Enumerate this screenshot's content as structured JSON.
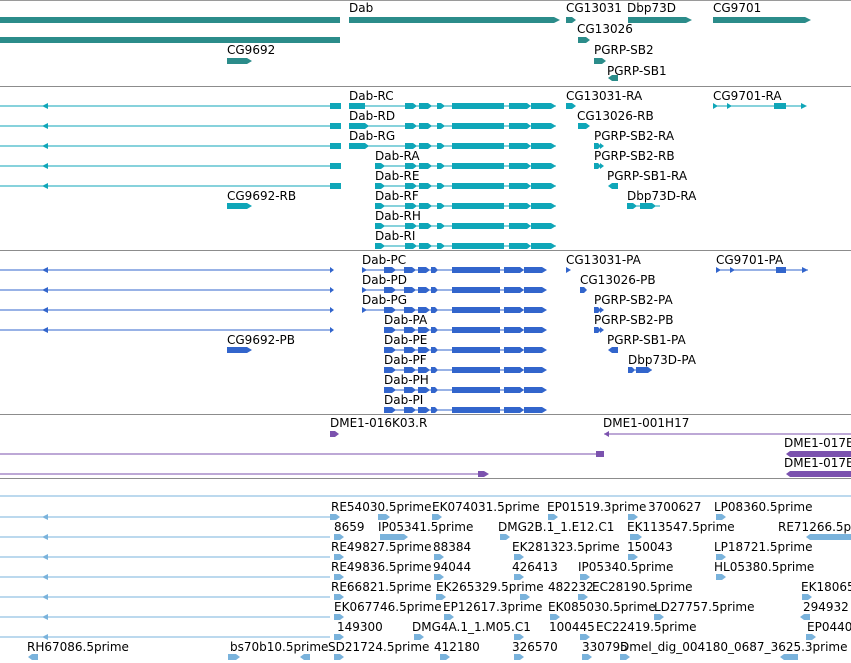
{
  "colors": {
    "gene": "#2b8c8a",
    "transcript": "#0fa6b8",
    "protein": "#3265cc",
    "clone": "#7b52ae",
    "est": "#7ab3dc",
    "separator": "#8c8c8c"
  },
  "genes": [
    {
      "label": "Dab",
      "row": 0
    },
    {
      "label": "CG13031",
      "row": 0
    },
    {
      "label": "Dbp73D",
      "row": 0
    },
    {
      "label": "CG9701",
      "row": 0
    },
    {
      "label": "CG13026",
      "row": 1
    },
    {
      "label": "CG9692",
      "row": 2
    },
    {
      "label": "PGRP-SB2",
      "row": 2
    },
    {
      "label": "PGRP-SB1",
      "row": 3
    }
  ],
  "transcripts": [
    {
      "label": "Dab-RC"
    },
    {
      "label": "CG13031-RA"
    },
    {
      "label": "CG9701-RA"
    },
    {
      "label": "Dab-RD"
    },
    {
      "label": "CG13026-RB"
    },
    {
      "label": "Dab-RG"
    },
    {
      "label": "PGRP-SB2-RA"
    },
    {
      "label": "Dab-RA"
    },
    {
      "label": "PGRP-SB2-RB"
    },
    {
      "label": "Dab-RE"
    },
    {
      "label": "PGRP-SB1-RA"
    },
    {
      "label": "CG9692-RB"
    },
    {
      "label": "Dab-RF"
    },
    {
      "label": "Dbp73D-RA"
    },
    {
      "label": "Dab-RH"
    },
    {
      "label": "Dab-RI"
    }
  ],
  "proteins": [
    {
      "label": "Dab-PC"
    },
    {
      "label": "CG13031-PA"
    },
    {
      "label": "CG9701-PA"
    },
    {
      "label": "Dab-PD"
    },
    {
      "label": "CG13026-PB"
    },
    {
      "label": "Dab-PG"
    },
    {
      "label": "PGRP-SB2-PA"
    },
    {
      "label": "Dab-PA"
    },
    {
      "label": "PGRP-SB2-PB"
    },
    {
      "label": "CG9692-PB"
    },
    {
      "label": "Dab-PE"
    },
    {
      "label": "PGRP-SB1-PA"
    },
    {
      "label": "Dab-PF"
    },
    {
      "label": "Dbp73D-PA"
    },
    {
      "label": "Dab-PH"
    },
    {
      "label": "Dab-PI"
    }
  ],
  "clones": [
    {
      "label": "DME1-016K03.R"
    },
    {
      "label": "DME1-001H17"
    },
    {
      "label": "DME1-017E"
    },
    {
      "label": "DME1-017E"
    }
  ],
  "ests": [
    {
      "label": "RE54030.5prime"
    },
    {
      "label": "EK074031.5prime"
    },
    {
      "label": "EP01519.3prime"
    },
    {
      "label": "3700627"
    },
    {
      "label": "LP08360.5prime"
    },
    {
      "label": "8659"
    },
    {
      "label": "IP05341.5prime"
    },
    {
      "label": "DMG2B.1_1.E12.C1"
    },
    {
      "label": "EK113547.5prime"
    },
    {
      "label": "RE71266.5p"
    },
    {
      "label": "RE49827.5prime"
    },
    {
      "label": "88384"
    },
    {
      "label": "EK281323.5prime"
    },
    {
      "label": "150043"
    },
    {
      "label": "LP18721.5prime"
    },
    {
      "label": "RE49836.5prime"
    },
    {
      "label": "94044"
    },
    {
      "label": "426413"
    },
    {
      "label": "IP05340.5prime"
    },
    {
      "label": "HL05380.5prime"
    },
    {
      "label": "RE66821.5prime"
    },
    {
      "label": "EK265329.5prime"
    },
    {
      "label": "482232"
    },
    {
      "label": "EC28190.5prime"
    },
    {
      "label": "EK18065"
    },
    {
      "label": "EK067746.5prime"
    },
    {
      "label": "EP12617.3prime"
    },
    {
      "label": "EK085030.5prime"
    },
    {
      "label": "LD27757.5prime"
    },
    {
      "label": "294932"
    },
    {
      "label": "149300"
    },
    {
      "label": "DMG4A.1_1.M05.C1"
    },
    {
      "label": "100445"
    },
    {
      "label": "EC22419.5prime"
    },
    {
      "label": "EP0440"
    },
    {
      "label": "RH67086.5prime"
    },
    {
      "label": "bs70b10.5prime"
    },
    {
      "label": "SD21724.5prime"
    },
    {
      "label": "412180"
    },
    {
      "label": "326570"
    },
    {
      "label": "330795"
    },
    {
      "label": "Dmel_dig_004180_0687_3625.3prime"
    }
  ]
}
